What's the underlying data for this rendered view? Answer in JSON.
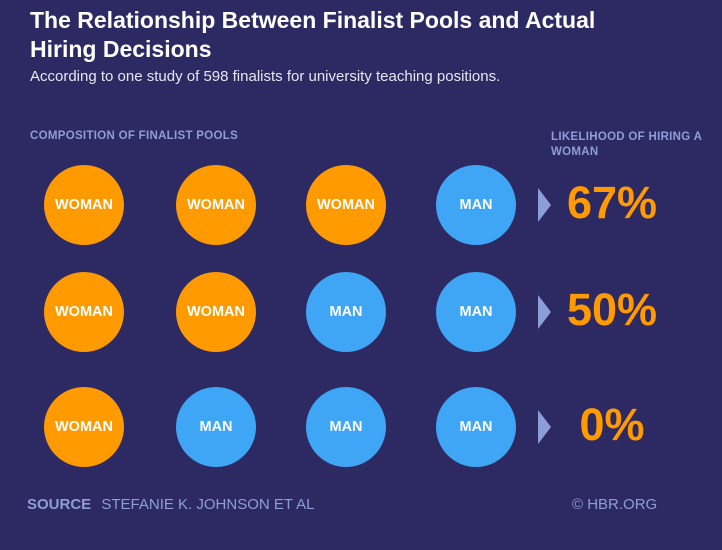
{
  "title": "The Relationship Between Finalist Pools and Actual Hiring Decisions",
  "subtitle": "According to one study of 598 finalists for university teaching positions.",
  "headers": {
    "left": "COMPOSITION OF FINALIST POOLS",
    "right": "LIKELIHOOD OF HIRING A WOMAN"
  },
  "colors": {
    "background": "#2d2a63",
    "woman": "#ff9a00",
    "man": "#3fa6f5",
    "accent_text": "#8c9ed8",
    "value": "#ff9a00"
  },
  "chart_data": {
    "type": "table",
    "title": "The Relationship Between Finalist Pools and Actual Hiring Decisions",
    "subtitle": "According to one study of 598 finalists for university teaching positions.",
    "x_label": "COMPOSITION OF FINALIST POOLS",
    "y_label": "LIKELIHOOD OF HIRING A WOMAN",
    "rows": [
      {
        "pool": [
          "WOMAN",
          "WOMAN",
          "WOMAN",
          "MAN"
        ],
        "likelihood": 67,
        "label": "67%"
      },
      {
        "pool": [
          "WOMAN",
          "WOMAN",
          "MAN",
          "MAN"
        ],
        "likelihood": 50,
        "label": "50%"
      },
      {
        "pool": [
          "WOMAN",
          "MAN",
          "MAN",
          "MAN"
        ],
        "likelihood": 0,
        "label": "0%"
      }
    ]
  },
  "footer": {
    "source_label": "SOURCE",
    "source_text": "STEFANIE K. JOHNSON ET AL",
    "credit": "© HBR.ORG"
  }
}
